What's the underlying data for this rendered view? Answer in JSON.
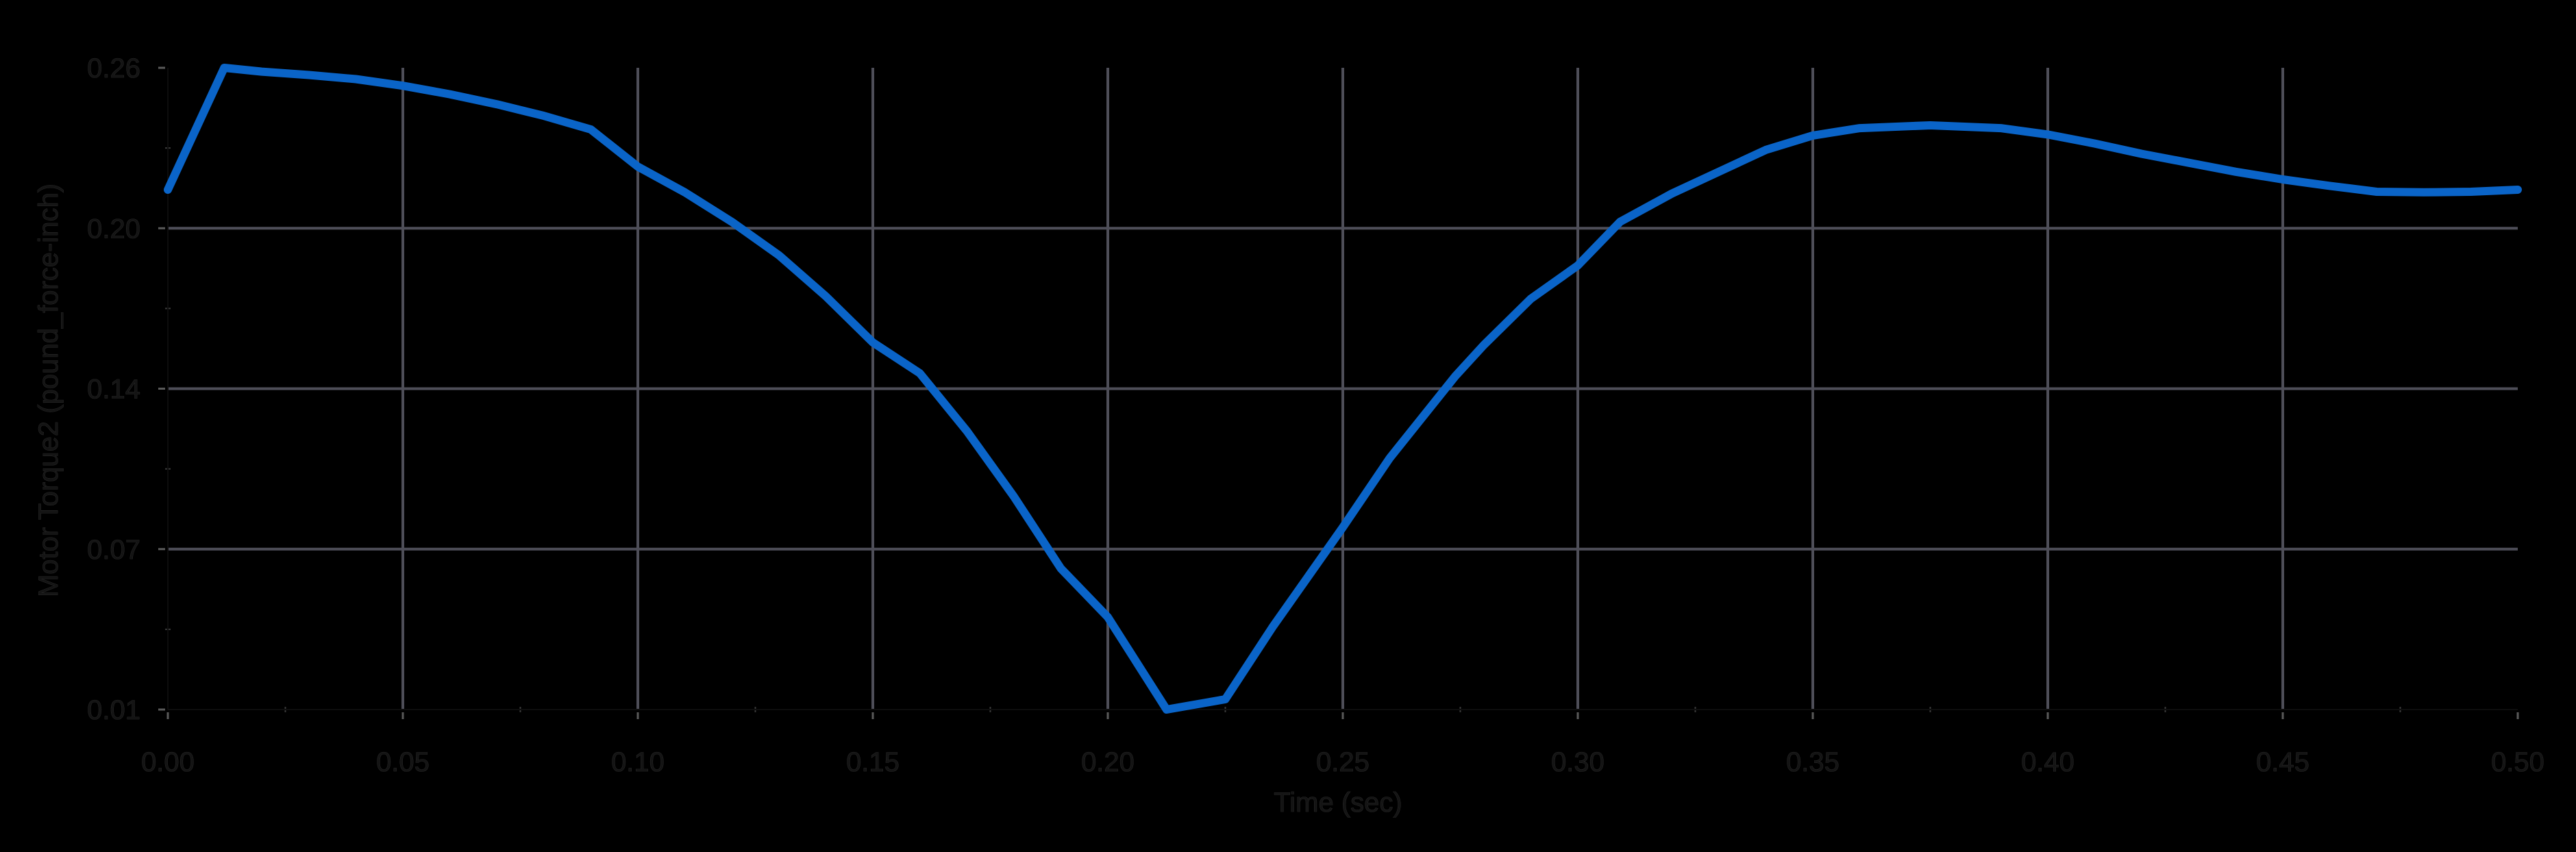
{
  "colors": {
    "background": "#000000",
    "series": "#0a64c8",
    "grid": "#4e4e58"
  },
  "chart_data": {
    "type": "line",
    "title": "",
    "xlabel": "Time (sec)",
    "ylabel": "Motor Torque2 (pound_force-inch)",
    "xlim": [
      0.0,
      0.5
    ],
    "ylim": [
      0.01,
      0.26
    ],
    "x_ticks": [
      "0.00",
      "0.05",
      "0.10",
      "0.15",
      "0.20",
      "0.25",
      "0.30",
      "0.35",
      "0.40",
      "0.45",
      "0.50"
    ],
    "y_ticks": [
      "0.01",
      "0.07",
      "0.14",
      "0.20",
      "0.26"
    ],
    "grid": true,
    "legend": null,
    "series": [
      {
        "name": "Motor Torque2",
        "x": [
          0.0,
          0.012,
          0.02,
          0.03,
          0.04,
          0.05,
          0.06,
          0.07,
          0.08,
          0.09,
          0.1,
          0.11,
          0.12,
          0.13,
          0.14,
          0.15,
          0.16,
          0.17,
          0.18,
          0.19,
          0.2,
          0.2125,
          0.225,
          0.235,
          0.25,
          0.26,
          0.274,
          0.28,
          0.29,
          0.3,
          0.309,
          0.32,
          0.33,
          0.34,
          0.35,
          0.36,
          0.375,
          0.39,
          0.4,
          0.41,
          0.42,
          0.43,
          0.44,
          0.45,
          0.46,
          0.47,
          0.48,
          0.49,
          0.5
        ],
        "values": [
          0.2125,
          0.26,
          0.2585,
          0.2572,
          0.2556,
          0.253,
          0.2497,
          0.2458,
          0.2413,
          0.236,
          0.2215,
          0.2115,
          0.2,
          0.187,
          0.171,
          0.153,
          0.141,
          0.1185,
          0.093,
          0.065,
          0.046,
          0.01,
          0.014,
          0.042,
          0.081,
          0.108,
          0.14,
          0.152,
          0.17,
          0.183,
          0.2,
          0.211,
          0.2195,
          0.228,
          0.2336,
          0.2365,
          0.2376,
          0.2365,
          0.234,
          0.2305,
          0.2265,
          0.223,
          0.2195,
          0.2165,
          0.214,
          0.2117,
          0.2115,
          0.2117,
          0.2125
        ]
      }
    ]
  }
}
